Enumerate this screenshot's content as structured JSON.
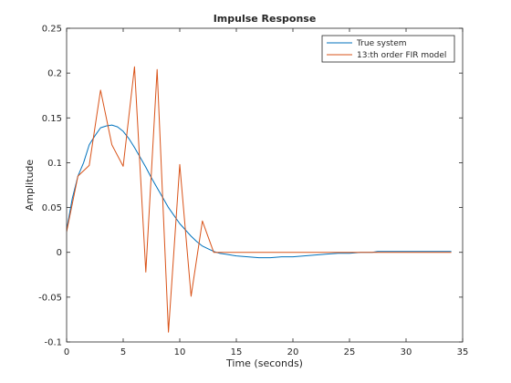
{
  "chart_data": {
    "type": "line",
    "title": "Impulse Response",
    "xlabel": "Time (seconds)",
    "ylabel": "Amplitude",
    "xlim": [
      0,
      35
    ],
    "ylim": [
      -0.1,
      0.25
    ],
    "xticks": [
      0,
      5,
      10,
      15,
      20,
      25,
      30,
      35
    ],
    "xtick_labels": [
      "0",
      "5",
      "10",
      "15",
      "20",
      "25",
      "30",
      "35"
    ],
    "yticks": [
      -0.1,
      -0.05,
      0,
      0.05,
      0.1,
      0.15,
      0.2,
      0.25
    ],
    "ytick_labels": [
      "-0.1",
      "-0.05",
      "0",
      "0.05",
      "0.1",
      "0.15",
      "0.2",
      "0.25"
    ],
    "grid": false,
    "legend_position": "top-right",
    "series": [
      {
        "name": "True system",
        "color": "#0072bd",
        "x": [
          0,
          0.5,
          1,
          1.5,
          2,
          2.5,
          3,
          3.5,
          4,
          4.5,
          5,
          5.5,
          6,
          6.5,
          7,
          7.5,
          8,
          8.5,
          9,
          9.5,
          10,
          10.5,
          11,
          11.5,
          12,
          12.5,
          13,
          13.5,
          14,
          14.5,
          15,
          16,
          17,
          18,
          19,
          20,
          21,
          22,
          23,
          24,
          25,
          26,
          27,
          27.5,
          28,
          30,
          32,
          34
        ],
        "y": [
          0.025,
          0.06,
          0.085,
          0.1,
          0.12,
          0.13,
          0.139,
          0.141,
          0.142,
          0.14,
          0.135,
          0.127,
          0.117,
          0.106,
          0.095,
          0.083,
          0.072,
          0.061,
          0.05,
          0.041,
          0.032,
          0.025,
          0.018,
          0.012,
          0.007,
          0.004,
          0.001,
          -0.001,
          -0.002,
          -0.003,
          -0.004,
          -0.005,
          -0.006,
          -0.006,
          -0.005,
          -0.005,
          -0.004,
          -0.003,
          -0.002,
          -0.001,
          -0.001,
          0,
          0,
          0.001,
          0.001,
          0.001,
          0.001,
          0.001
        ]
      },
      {
        "name": "13:th order FIR model",
        "color": "#d95319",
        "x": [
          0,
          1,
          2,
          3,
          4,
          5,
          6,
          7,
          8,
          9,
          10,
          11,
          12,
          13,
          14,
          15,
          16,
          17,
          18,
          19,
          20,
          21,
          22,
          23,
          24,
          25,
          26,
          27,
          28,
          29,
          30,
          31,
          32,
          33,
          34
        ],
        "y": [
          0.023,
          0.085,
          0.097,
          0.181,
          0.12,
          0.096,
          0.207,
          -0.022,
          0.204,
          -0.089,
          0.098,
          -0.049,
          0.035,
          0,
          0,
          0,
          0,
          0,
          0,
          0,
          0,
          0,
          0,
          0,
          0,
          0,
          0,
          0,
          0,
          0,
          0,
          0,
          0,
          0,
          0
        ]
      }
    ]
  }
}
